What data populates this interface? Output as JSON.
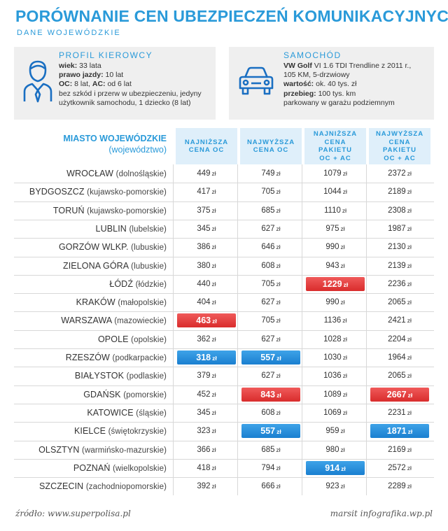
{
  "title": "PORÓWNANIE CEN UBEZPIECZEŃ KOMUNIKACYJNYCH",
  "subtitle": "DANE WOJEWÓDZKIE",
  "driver_profile": {
    "heading": "PROFIL KIEROWCY",
    "age_label": "wiek:",
    "age_value": " 33 lata",
    "license_label": "prawo jazdy:",
    "license_value": " 10 lat",
    "oc_label": "OC:",
    "oc_value": " 8 lat, ",
    "ac_label": "AC:",
    "ac_value": " od 6 lat",
    "line4": "bez szkód i przerw w ubezpieczeniu, jedyny",
    "line5": "użytkownik samochodu, 1 dziecko (8 lat)"
  },
  "car": {
    "heading": "SAMOCHÓD",
    "model_bold": "VW Golf",
    "model_rest": " VI 1.6 TDI Trendline z 2011 r.,",
    "line2": "105 KM, 5-drzwiowy",
    "value_label": "wartość:",
    "value_value": " ok. 40 tys. zł",
    "mileage_label": "przebieg:",
    "mileage_value": " 100 tys. km",
    "line5": "parkowany w garażu podziemnym"
  },
  "table_header": {
    "city": "MIASTO WOJEWÓDZKIE",
    "voivodeship": "(województwo)",
    "columns": [
      [
        "NAJNIŻSZA",
        "CENA OC"
      ],
      [
        "NAJWYŻSZA",
        "CENA  OC"
      ],
      [
        "NAJNIŻSZA",
        "CENA PAKIETU",
        "OC + AC"
      ],
      [
        "NAJWYŻSZA",
        "CENA PAKIETU",
        "OC + AC"
      ]
    ]
  },
  "unit": "zł",
  "colors": {
    "accent": "#2a9ad9",
    "max_highlight": "#e23b3b",
    "min_highlight": "#2386d6"
  },
  "chart_data": {
    "type": "table",
    "columns": [
      "NAJNIŻSZA CENA OC",
      "NAJWYŻSZA CENA OC",
      "NAJNIŻSZA CENA PAKIETU OC + AC",
      "NAJWYŻSZA CENA PAKIETU OC + AC"
    ],
    "rows": [
      {
        "city": "WROCŁAW",
        "voivodeship": "(dolnośląskie)",
        "values": [
          449,
          749,
          1079,
          2372
        ],
        "highlight": [
          "",
          "",
          "",
          ""
        ]
      },
      {
        "city": "BYDGOSZCZ",
        "voivodeship": "(kujawsko-pomorskie)",
        "values": [
          417,
          705,
          1044,
          2189
        ],
        "highlight": [
          "",
          "",
          "",
          ""
        ]
      },
      {
        "city": "TORUŃ",
        "voivodeship": "(kujawsko-pomorskie)",
        "values": [
          375,
          685,
          1110,
          2308
        ],
        "highlight": [
          "",
          "",
          "",
          ""
        ]
      },
      {
        "city": "LUBLIN",
        "voivodeship": "(lubelskie)",
        "values": [
          345,
          627,
          975,
          1987
        ],
        "highlight": [
          "",
          "",
          "",
          ""
        ]
      },
      {
        "city": "GORZÓW WLKP.",
        "voivodeship": "(lubuskie)",
        "values": [
          386,
          646,
          990,
          2130
        ],
        "highlight": [
          "",
          "",
          "",
          ""
        ]
      },
      {
        "city": "ZIELONA GÓRA",
        "voivodeship": "(lubuskie)",
        "values": [
          380,
          608,
          943,
          2139
        ],
        "highlight": [
          "",
          "",
          "",
          ""
        ]
      },
      {
        "city": "ŁÓDŹ",
        "voivodeship": "(łódzkie)",
        "values": [
          440,
          705,
          1229,
          2236
        ],
        "highlight": [
          "",
          "",
          "red",
          ""
        ]
      },
      {
        "city": "KRAKÓW",
        "voivodeship": "(małopolskie)",
        "values": [
          404,
          627,
          990,
          2065
        ],
        "highlight": [
          "",
          "",
          "",
          ""
        ]
      },
      {
        "city": "WARSZAWA",
        "voivodeship": "(mazowieckie)",
        "values": [
          463,
          705,
          1136,
          2421
        ],
        "highlight": [
          "red",
          "",
          "",
          ""
        ]
      },
      {
        "city": "OPOLE",
        "voivodeship": "(opolskie)",
        "values": [
          362,
          627,
          1028,
          2204
        ],
        "highlight": [
          "",
          "",
          "",
          ""
        ]
      },
      {
        "city": "RZESZÓW",
        "voivodeship": "(podkarpackie)",
        "values": [
          318,
          557,
          1030,
          1964
        ],
        "highlight": [
          "blue",
          "blue",
          "",
          ""
        ]
      },
      {
        "city": "BIAŁYSTOK",
        "voivodeship": "(podlaskie)",
        "values": [
          379,
          627,
          1036,
          2065
        ],
        "highlight": [
          "",
          "",
          "",
          ""
        ]
      },
      {
        "city": "GDAŃSK",
        "voivodeship": "(pomorskie)",
        "values": [
          452,
          843,
          1089,
          2667
        ],
        "highlight": [
          "",
          "red",
          "",
          "red"
        ]
      },
      {
        "city": "KATOWICE",
        "voivodeship": "(śląskie)",
        "values": [
          345,
          608,
          1069,
          2231
        ],
        "highlight": [
          "",
          "",
          "",
          ""
        ]
      },
      {
        "city": "KIELCE",
        "voivodeship": "(świętokrzyskie)",
        "values": [
          323,
          557,
          959,
          1871
        ],
        "highlight": [
          "",
          "blue",
          "",
          "blue"
        ]
      },
      {
        "city": "OLSZTYN",
        "voivodeship": "(warmińsko-mazurskie)",
        "values": [
          366,
          685,
          980,
          2169
        ],
        "highlight": [
          "",
          "",
          "",
          ""
        ]
      },
      {
        "city": "POZNAŃ",
        "voivodeship": "(wielkopolskie)",
        "values": [
          418,
          794,
          914,
          2572
        ],
        "highlight": [
          "",
          "",
          "blue",
          ""
        ]
      },
      {
        "city": "SZCZECIN",
        "voivodeship": "(zachodniopomorskie)",
        "values": [
          392,
          666,
          923,
          2289
        ],
        "highlight": [
          "",
          "",
          "",
          ""
        ]
      }
    ]
  },
  "footer": {
    "source": "źródło: www.superpolisa.pl",
    "credit": "marsit infografika.wp.pl"
  }
}
